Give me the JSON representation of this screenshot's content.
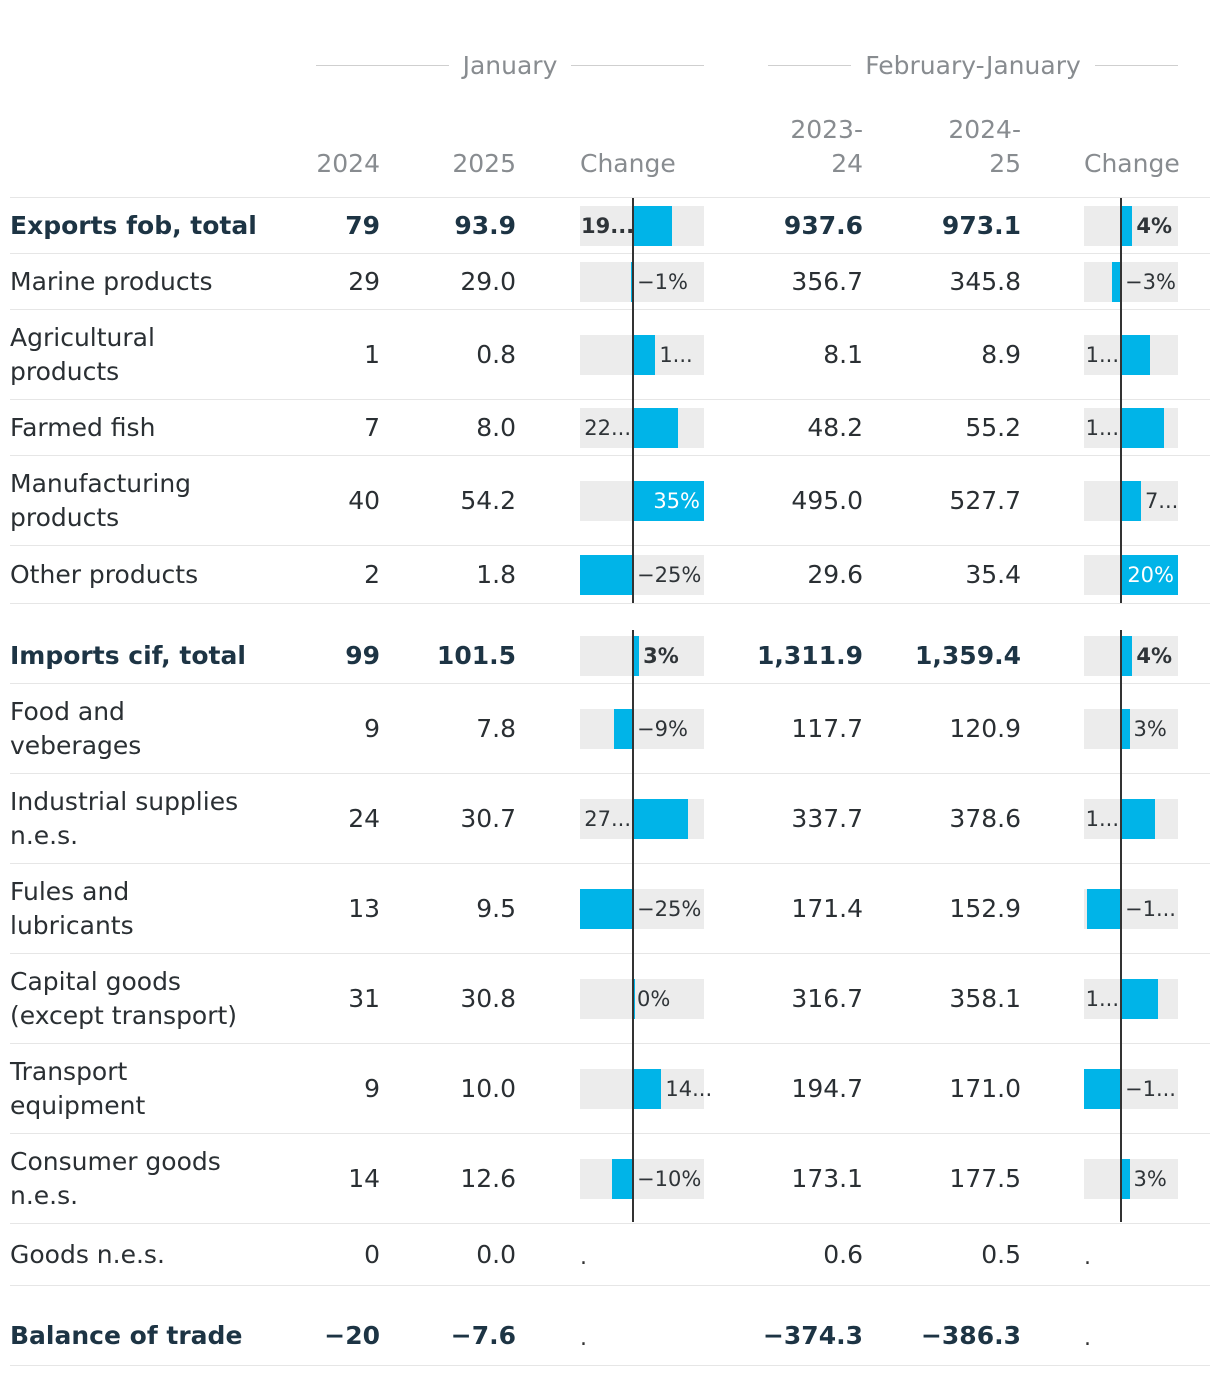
{
  "header": {
    "group1": "January",
    "group2": "February-January",
    "columns": {
      "c1": "2024",
      "c2": "2025",
      "c3": "Change",
      "c4": "2023-\n24",
      "c5": "2024-\n25",
      "c6": "Change"
    }
  },
  "chart_data": {
    "type": "table",
    "title": "",
    "columns": [
      "",
      "January 2024",
      "January 2025",
      "January Change",
      "February-January 2023-24",
      "February-January 2024-25",
      "February-January Change"
    ],
    "rows": [
      {
        "label": "Exports fob, total",
        "bold": true,
        "jan2024": "79",
        "jan2025": "93.9",
        "jan_change": 19,
        "jan_change_label": "19...",
        "fj2324": "937.6",
        "fj2425": "973.1",
        "fj_change": 4,
        "fj_change_label": "4%"
      },
      {
        "label": "Marine products",
        "jan2024": "29",
        "jan2025": "29.0",
        "jan_change": -1,
        "jan_change_label": "−1%",
        "fj2324": "356.7",
        "fj2425": "345.8",
        "fj_change": -3,
        "fj_change_label": "−3%"
      },
      {
        "label": "Agricultural products",
        "jan2024": "1",
        "jan2025": "0.8",
        "jan_change": 11,
        "jan_change_label": "1...",
        "fj2324": "8.1",
        "fj2425": "8.9",
        "fj_change": 10,
        "fj_change_label": "1..."
      },
      {
        "label": "Farmed fish",
        "jan2024": "7",
        "jan2025": "8.0",
        "jan_change": 22,
        "jan_change_label": "22...",
        "fj2324": "48.2",
        "fj2425": "55.2",
        "fj_change": 15,
        "fj_change_label": "1..."
      },
      {
        "label": "Manufacturing products",
        "jan2024": "40",
        "jan2025": "54.2",
        "jan_change": 35,
        "jan_change_label": "35%",
        "fj2324": "495.0",
        "fj2425": "527.7",
        "fj_change": 7,
        "fj_change_label": "7..."
      },
      {
        "label": "Other products",
        "jan2024": "2",
        "jan2025": "1.8",
        "jan_change": -25,
        "jan_change_label": "−25%",
        "fj2324": "29.6",
        "fj2425": "35.4",
        "fj_change": 20,
        "fj_change_label": "20%"
      },
      {
        "label": "Imports cif, total",
        "bold": true,
        "jan2024": "99",
        "jan2025": "101.5",
        "jan_change": 3,
        "jan_change_label": "3%",
        "fj2324": "1,311.9",
        "fj2425": "1,359.4",
        "fj_change": 4,
        "fj_change_label": "4%"
      },
      {
        "label": "Food and veberages",
        "jan2024": "9",
        "jan2025": "7.8",
        "jan_change": -9,
        "jan_change_label": "−9%",
        "fj2324": "117.7",
        "fj2425": "120.9",
        "fj_change": 3,
        "fj_change_label": "3%"
      },
      {
        "label": "Industrial supplies n.e.s.",
        "jan2024": "24",
        "jan2025": "30.7",
        "jan_change": 27,
        "jan_change_label": "27...",
        "fj2324": "337.7",
        "fj2425": "378.6",
        "fj_change": 12,
        "fj_change_label": "1..."
      },
      {
        "label": "Fules and lubricants",
        "jan2024": "13",
        "jan2025": "9.5",
        "jan_change": -25,
        "jan_change_label": "−25%",
        "fj2324": "171.4",
        "fj2425": "152.9",
        "fj_change": -11,
        "fj_change_label": "−1..."
      },
      {
        "label": "Capital goods (except transport)",
        "jan2024": "31",
        "jan2025": "30.8",
        "jan_change": 0,
        "jan_change_label": "0%",
        "fj2324": "316.7",
        "fj2425": "358.1",
        "fj_change": 13,
        "fj_change_label": "1..."
      },
      {
        "label": "Transport equipment",
        "jan2024": "9",
        "jan2025": "10.0",
        "jan_change": 14,
        "jan_change_label": "14...",
        "fj2324": "194.7",
        "fj2425": "171.0",
        "fj_change": -12,
        "fj_change_label": "−1..."
      },
      {
        "label": "Consumer goods n.e.s.",
        "jan2024": "14",
        "jan2025": "12.6",
        "jan_change": -10,
        "jan_change_label": "−10%",
        "fj2324": "173.1",
        "fj2425": "177.5",
        "fj_change": 3,
        "fj_change_label": "3%"
      },
      {
        "label": "Goods n.e.s.",
        "jan2024": "0",
        "jan2025": "0.0",
        "jan_change": null,
        "jan_change_label": ".",
        "fj2324": "0.6",
        "fj2425": "0.5",
        "fj_change": null,
        "fj_change_label": "."
      },
      {
        "label": "Balance of trade",
        "bold": true,
        "jan2024": "−20",
        "jan2025": "−7.6",
        "jan_change": null,
        "jan_change_label": ".",
        "fj2324": "−374.3",
        "fj2425": "−386.3",
        "fj_change": null,
        "fj_change_label": "."
      }
    ],
    "jan_change_range": [
      -25,
      35
    ],
    "fj_change_range": [
      -12,
      20
    ]
  }
}
